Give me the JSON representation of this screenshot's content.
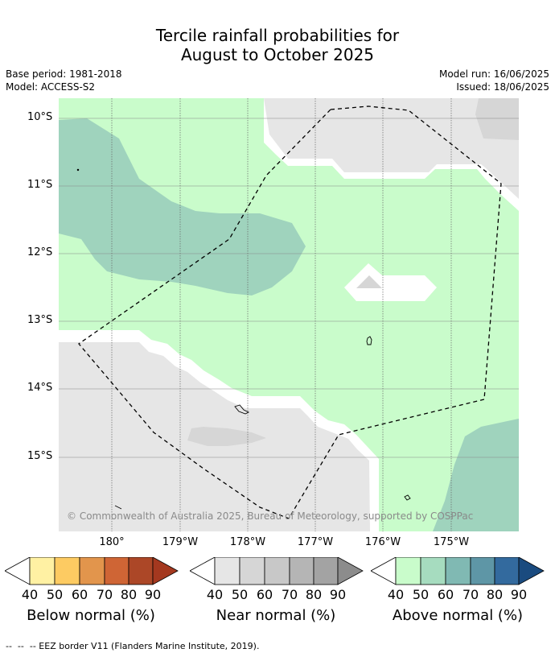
{
  "title": {
    "line1": "Tercile rainfall probabilities for",
    "line2": "August to October 2025"
  },
  "meta": {
    "base_period": "Base period: 1981-2018",
    "model": "Model: ACCESS-S2",
    "model_run": "Model run: 16/06/2025",
    "issued": "Issued: 18/06/2025"
  },
  "map": {
    "lat_labels": [
      "10°S",
      "11°S",
      "12°S",
      "13°S",
      "14°S",
      "15°S"
    ],
    "lon_labels": [
      "180°",
      "179°W",
      "178°W",
      "177°W",
      "176°W",
      "175°W"
    ],
    "attribution": "© Commonwealth of Australia 2025, Bureau of Meteorology, supported by COSPPac",
    "colors": {
      "near_normal_40": "#e6e6e6",
      "near_normal_50": "#d6d6d6",
      "above_normal_40": "#c9fccb",
      "above_normal_50": "#9fd3bd",
      "ocean_gap": "#ffffff",
      "eez_border": "#000000"
    }
  },
  "legend": {
    "ticks": [
      "40",
      "50",
      "60",
      "70",
      "80",
      "90"
    ],
    "below": {
      "label": "Below normal (%)",
      "colors": [
        "#fff1a3",
        "#fdcb62",
        "#e2954c",
        "#cf6535",
        "#ac4727",
        "#a4381f"
      ]
    },
    "near": {
      "label": "Near normal (%)",
      "colors": [
        "#e6e6e6",
        "#d6d6d6",
        "#c8c8c8",
        "#b5b5b5",
        "#a3a3a3",
        "#8c8c8c"
      ]
    },
    "above": {
      "label": "Above normal (%)",
      "colors": [
        "#c9fccb",
        "#a6dcbf",
        "#80b9b3",
        "#5e96a6",
        "#336a9e",
        "#1a4b7f"
      ]
    }
  },
  "footnote": "--  --  -- EEZ border V11 (Flanders Marine Institute, 2019)."
}
